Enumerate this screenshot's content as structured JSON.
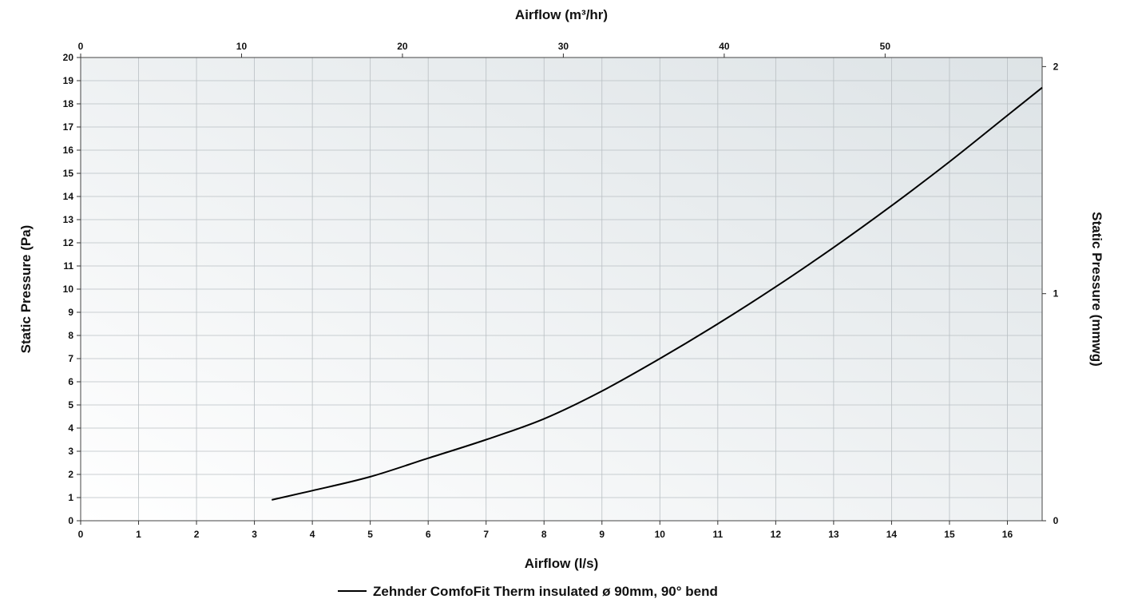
{
  "chart_data": {
    "type": "line",
    "title": "",
    "xlabel": "Airflow (l/s)",
    "x2label": "Airflow (m³/hr)",
    "ylabel": "Static Pressure (Pa)",
    "y2label": "Static Pressure (mmwg)",
    "xlim": [
      0,
      16.6
    ],
    "ylim": [
      0,
      20
    ],
    "x2lim": [
      0,
      59.76
    ],
    "y2lim": [
      0,
      2.04
    ],
    "x_ticks": [
      "0",
      "1",
      "2",
      "3",
      "4",
      "5",
      "6",
      "7",
      "8",
      "9",
      "10",
      "11",
      "12",
      "13",
      "14",
      "15",
      "16"
    ],
    "y_ticks": [
      "0",
      "1",
      "2",
      "3",
      "4",
      "5",
      "6",
      "7",
      "8",
      "9",
      "10",
      "11",
      "12",
      "13",
      "14",
      "15",
      "16",
      "17",
      "18",
      "19",
      "20"
    ],
    "x2_ticks": [
      "0",
      "10",
      "20",
      "30",
      "40",
      "50"
    ],
    "y2_ticks": [
      "0",
      "1",
      "2"
    ],
    "grid": true,
    "legend_position": "bottom-center",
    "series": [
      {
        "name": "Zehnder ComfoFit Therm insulated ø 90mm, 90° bend",
        "color": "#000000",
        "x": [
          3.3,
          4,
          5,
          6,
          7,
          8,
          9,
          10,
          11,
          12,
          13,
          14,
          15,
          16,
          16.6
        ],
        "y": [
          0.9,
          1.3,
          1.9,
          2.7,
          3.5,
          4.4,
          5.6,
          7.0,
          8.5,
          10.1,
          11.8,
          13.6,
          15.5,
          17.5,
          18.7
        ]
      }
    ]
  }
}
